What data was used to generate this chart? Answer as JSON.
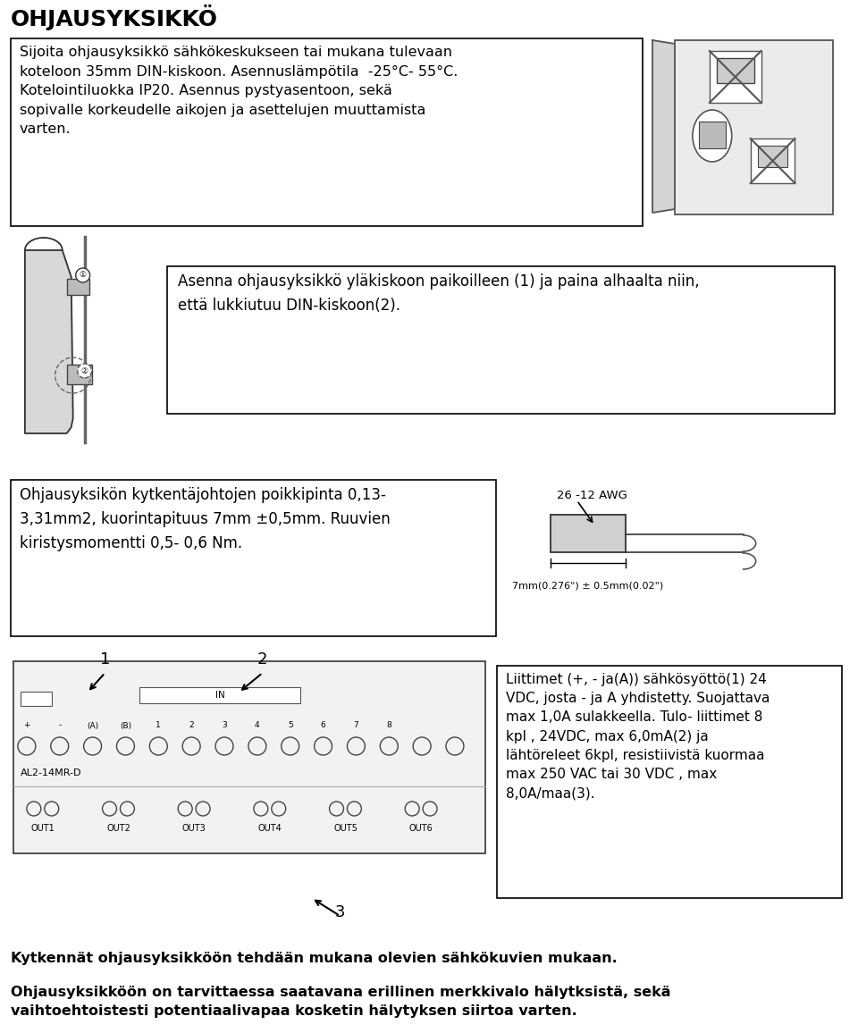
{
  "title": "OHJAUSYKSIKKÖ",
  "bg_color": "#ffffff",
  "text_color": "#000000",
  "section1_text": "Sijoita ohjausyksikkö sähkökeskukseen tai mukana tulevaan\nkoteloon 35mm DIN-kiskoon. Asennuslämpötila  -25°C- 55°C.\nKotelointiluokka IP20. Asennus pystyasentoon, sekä\nsopivalle korkeudelle aikojen ja asettelujen muuttamista\nvarten.",
  "section2_text": "Asenna ohjausyksikkö yläkiskoon paikoilleen (1) ja paina alhaalta niin,\nettä lukkiutuu DIN-kiskoon(2).",
  "section3_text": "Ohjausyksikön kytkentäjohtojen poikkipinta 0,13-\n3,31mm2, kuorintapituus 7mm ±0,5mm. Ruuvien\nkiristysmomentti 0,5- 0,6 Nm.",
  "section4_text": "Liittimet (+, - ja(A)) sähkösyöttö(1) 24\nVDC, josta - ja A yhdistetty. Suojattava\nmax 1,0A sulakkeella. Tulo- liittimet 8\nkpl , 24VDC, max 6,0mA(2) ja\nlähtöreleet 6kpl, resistiivistä kuormaa\nmax 250 VAC tai 30 VDC , max\n8,0A/maa(3).",
  "footer1": "Kytkennät ohjausyksikköön tehdään mukana olevien sähkökuvien mukaan.",
  "footer2": "Ohjausyksikköön on tarvittaessa saatavana erillinen merkkivalo hälytksistä, sekä\nvaihtoehtoistesti potentiaalivapaa kosketin hälytyksen siirtoa varten.",
  "awg_label": "26 -12 AWG",
  "dim_label": "7mm(0.276\") ± 0.5mm(0.02\")",
  "label1": "1",
  "label2": "2",
  "label3": "3",
  "al2_label": "AL2-14MR-D",
  "in_label": "IN",
  "connector_labels": [
    "+",
    "-",
    "(A)",
    "(B)",
    "1",
    "2",
    "3",
    "4",
    "5",
    "6",
    "7",
    "8"
  ],
  "out_labels": [
    "OUT1",
    "OUT2",
    "OUT3",
    "OUT4",
    "OUT5",
    "OUT6"
  ]
}
